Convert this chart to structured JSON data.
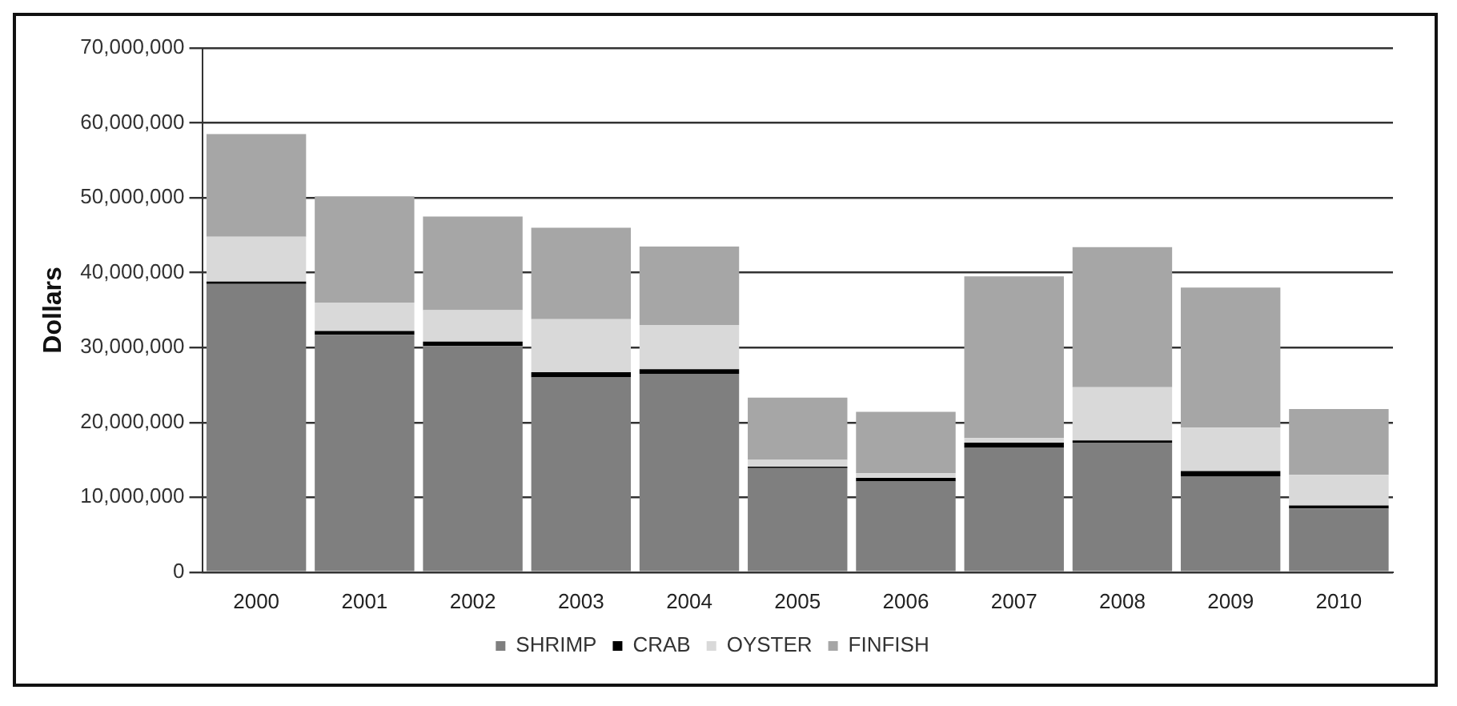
{
  "chart_data": {
    "type": "bar",
    "stacked": true,
    "ylabel": "Dollars",
    "categories": [
      "2000",
      "2001",
      "2002",
      "2003",
      "2004",
      "2005",
      "2006",
      "2007",
      "2008",
      "2009",
      "2010"
    ],
    "series": [
      {
        "name": "SHRIMP",
        "color": "#7f7f7f",
        "values": [
          38500000,
          31700000,
          30200000,
          26000000,
          26500000,
          13900000,
          12100000,
          16600000,
          17300000,
          12800000,
          8500000
        ]
      },
      {
        "name": "CRAB",
        "color": "#000000",
        "values": [
          300000,
          500000,
          600000,
          700000,
          600000,
          200000,
          500000,
          700000,
          300000,
          700000,
          400000
        ]
      },
      {
        "name": "OYSTER",
        "color": "#d9d9d9",
        "values": [
          6000000,
          3800000,
          4200000,
          7100000,
          5900000,
          900000,
          600000,
          600000,
          7100000,
          5800000,
          4100000
        ]
      },
      {
        "name": "FINFISH",
        "color": "#a6a6a6",
        "values": [
          13700000,
          14200000,
          12500000,
          12200000,
          10500000,
          8300000,
          8200000,
          21600000,
          18700000,
          18700000,
          8800000
        ]
      }
    ],
    "ylim": [
      0,
      70000000
    ],
    "yticks": [
      0,
      {
        "value": 10000000,
        "label": "10,000,000"
      },
      {
        "value": 20000000,
        "label": "20,000,000"
      },
      {
        "value": 30000000,
        "label": "30,000,000"
      },
      {
        "value": 40000000,
        "label": "40,000,000"
      },
      {
        "value": 50000000,
        "label": "50,000,000"
      },
      {
        "value": 60000000,
        "label": "60,000,000"
      },
      {
        "value": 70000000,
        "label": "70,000,000"
      }
    ],
    "grid": "y",
    "legend": "bottom"
  }
}
